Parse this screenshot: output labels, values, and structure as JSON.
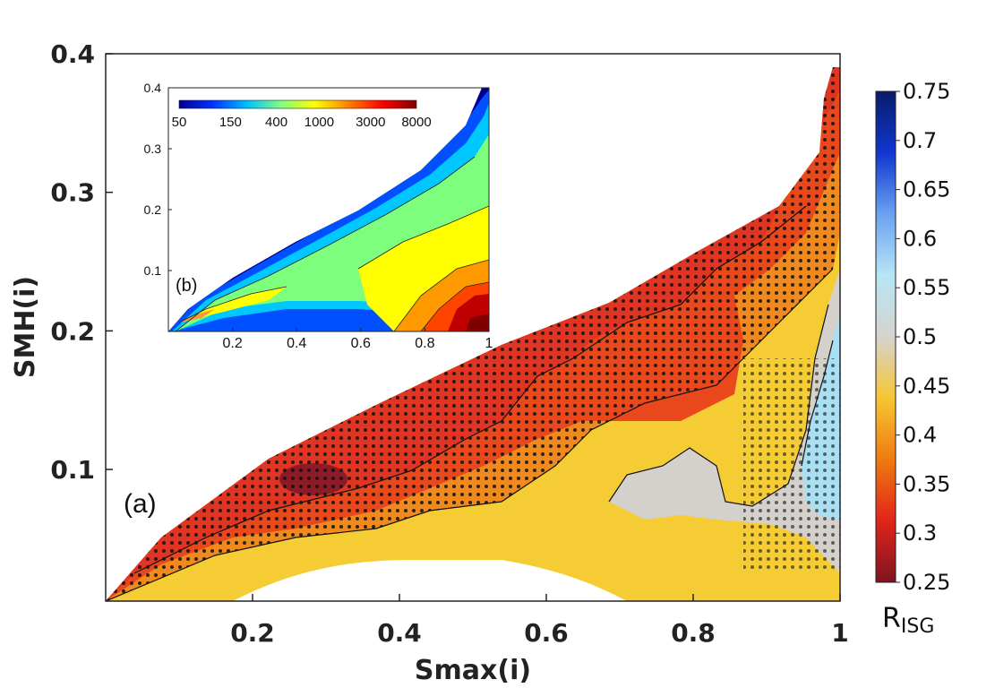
{
  "chart_data": [
    {
      "type": "heatmap",
      "panel_label": "(a)",
      "xlabel": "Smax(i)",
      "ylabel": "SMH(i)",
      "xlim": [
        0,
        1
      ],
      "ylim": [
        0.005,
        0.4
      ],
      "x_ticks": [
        "0.2",
        "0.4",
        "0.6",
        "0.8",
        "1"
      ],
      "y_ticks": [
        "0.1",
        "0.2",
        "0.3",
        "0.4"
      ],
      "colorbar": {
        "label_main": "R",
        "label_sub": "ISG",
        "range": [
          0.25,
          0.75
        ],
        "ticks": [
          "0.75",
          "0.7",
          "0.65",
          "0.6",
          "0.55",
          "0.5",
          "0.45",
          "0.4",
          "0.35",
          "0.3",
          "0.25"
        ],
        "colormap": [
          "#7f1420",
          "#e0251b",
          "#f07a10",
          "#f6c632",
          "#d6d3cf",
          "#b7e6f5",
          "#6aa2f0",
          "#1036d0",
          "#0a1c6a"
        ]
      },
      "contour_levels": [
        {
          "name": "0.30",
          "color": "#d8262a"
        },
        {
          "name": "0.35",
          "color": "#e9471c"
        },
        {
          "name": "0.40",
          "color": "#f08a1f"
        },
        {
          "name": "0.45",
          "color": "#f5cc33"
        },
        {
          "name": "0.50",
          "color": "#d4d1cc"
        },
        {
          "name": "0.55",
          "color": "#a9dff2"
        }
      ],
      "stippling": "black dots mark significant regions"
    },
    {
      "type": "heatmap",
      "panel_label": "(b)",
      "xlim": [
        0,
        1
      ],
      "ylim": [
        0,
        0.4
      ],
      "x_ticks": [
        "0.2",
        "0.4",
        "0.6",
        "0.8",
        "1"
      ],
      "y_ticks": [
        "0.1",
        "0.2",
        "0.3",
        "0.4"
      ],
      "colorbar": {
        "scale": "log",
        "range": [
          50,
          8000
        ],
        "ticks": [
          "50",
          "150",
          "400",
          "1000",
          "3000",
          "8000"
        ],
        "colormap": [
          "#00008f",
          "#0033ff",
          "#00bfff",
          "#80ff80",
          "#ffff00",
          "#ff8000",
          "#ff0000",
          "#800000"
        ]
      }
    }
  ]
}
